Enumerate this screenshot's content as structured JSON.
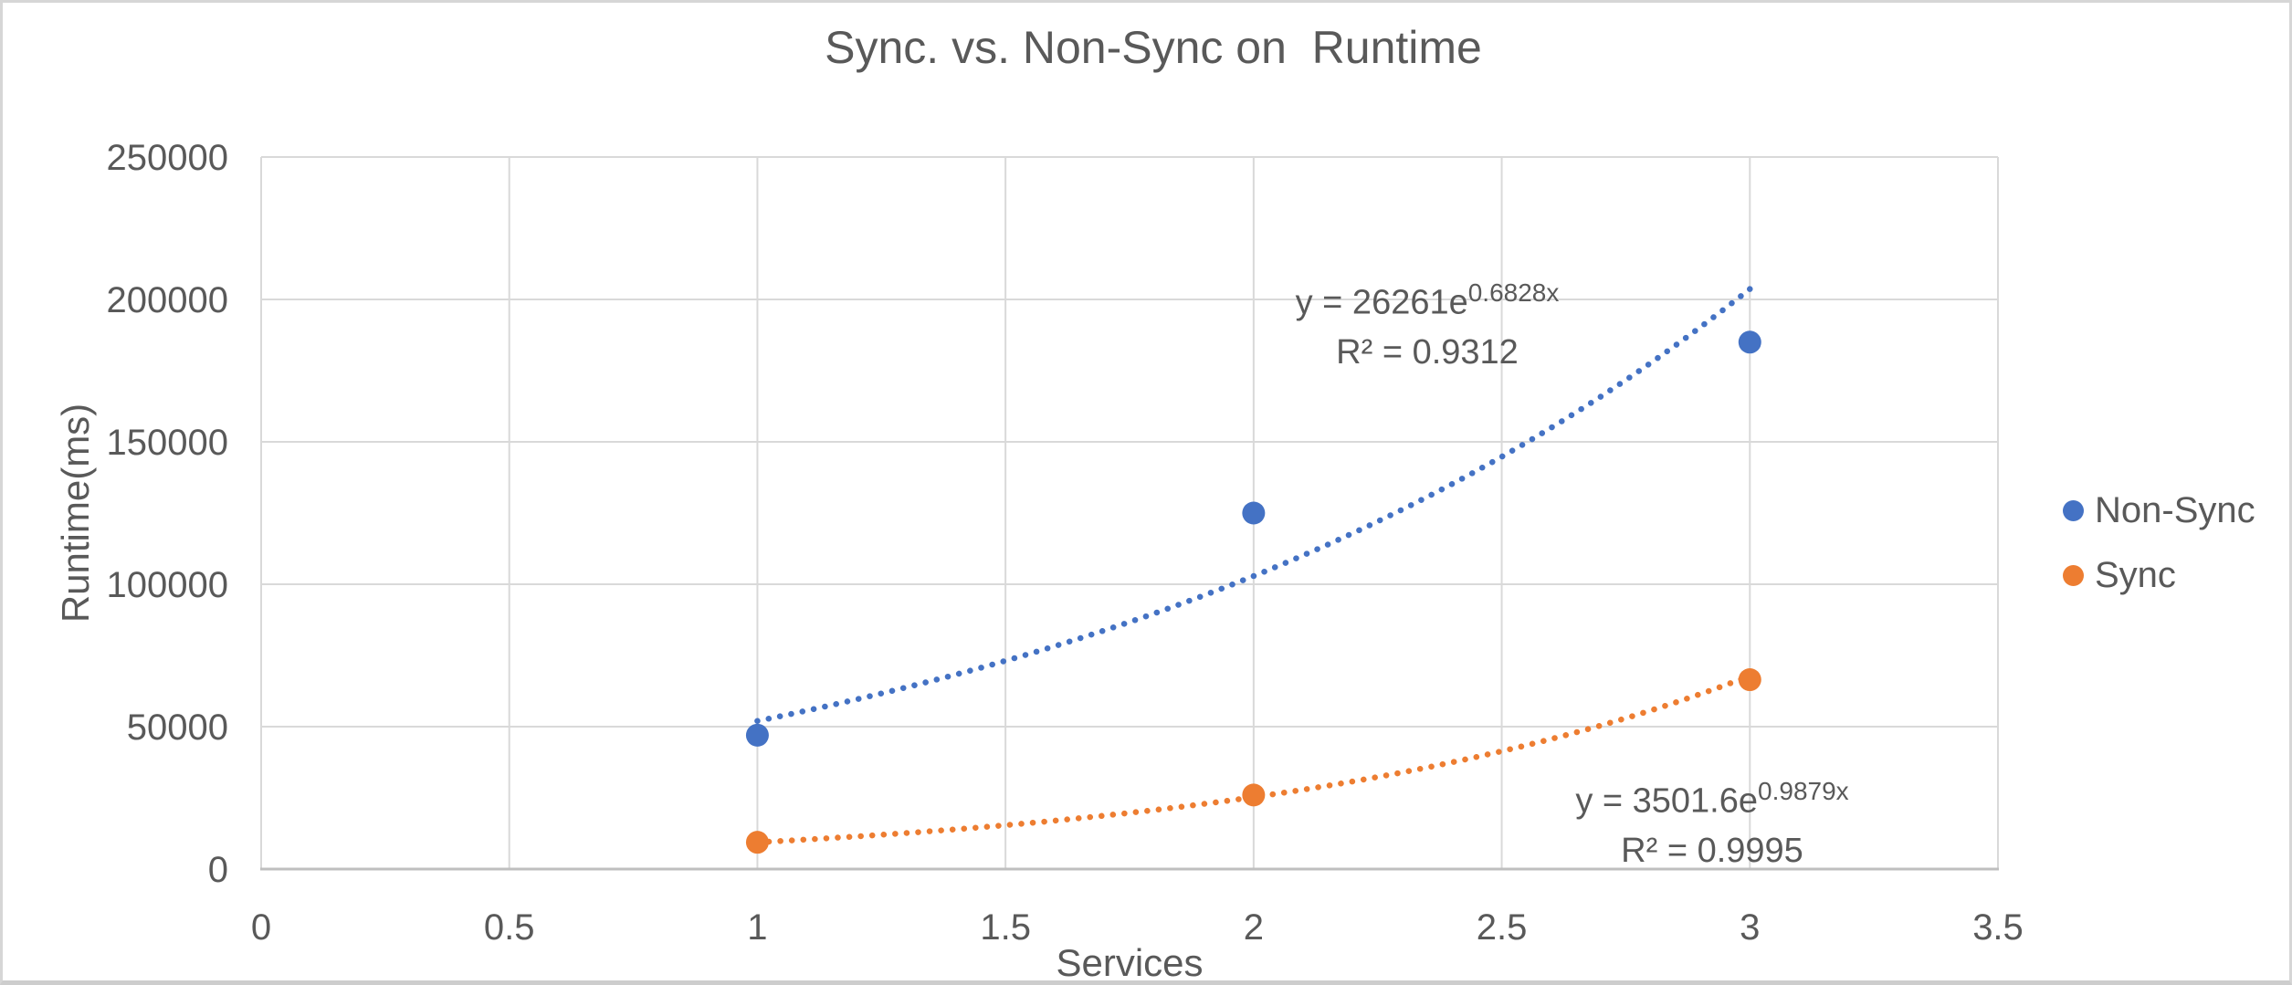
{
  "page": {
    "background": "#FFFFFF",
    "frame_color": "#D6D6D6"
  },
  "chart_data": {
    "type": "scatter",
    "title": "Sync. vs. Non-Sync on  Runtime",
    "xlabel": "Services",
    "ylabel": "Runtime(ms)",
    "xlim": [
      0,
      3.5
    ],
    "ylim": [
      0,
      250000
    ],
    "x_ticks": [
      0,
      0.5,
      1,
      1.5,
      2,
      2.5,
      3,
      3.5
    ],
    "y_ticks": [
      0,
      50000,
      100000,
      150000,
      200000,
      250000
    ],
    "grid": true,
    "legend_position": "right-middle",
    "colors": {
      "grid": "#D9D9D9",
      "axis": "#BFBFBF",
      "text": "#595959"
    },
    "series": [
      {
        "name": "Non-Sync",
        "color": "#4472C4",
        "x": [
          1,
          2,
          3
        ],
        "y": [
          47000,
          125000,
          185000
        ],
        "trendline": {
          "type": "exponential",
          "a": 26261,
          "b": 0.6828,
          "range": [
            1,
            3
          ],
          "equation_base": "y = 26261e",
          "equation_exponent": "0.6828x",
          "r2_label": "R² = 0.9312"
        }
      },
      {
        "name": "Sync",
        "color": "#ED7D31",
        "x": [
          1,
          2,
          3
        ],
        "y": [
          9400,
          26000,
          66500
        ],
        "trendline": {
          "type": "exponential",
          "a": 3501.6,
          "b": 0.9879,
          "range": [
            1,
            3
          ],
          "equation_base": "y = 3501.6e",
          "equation_exponent": "0.9879x",
          "r2_label": "R² = 0.9995"
        }
      }
    ]
  }
}
